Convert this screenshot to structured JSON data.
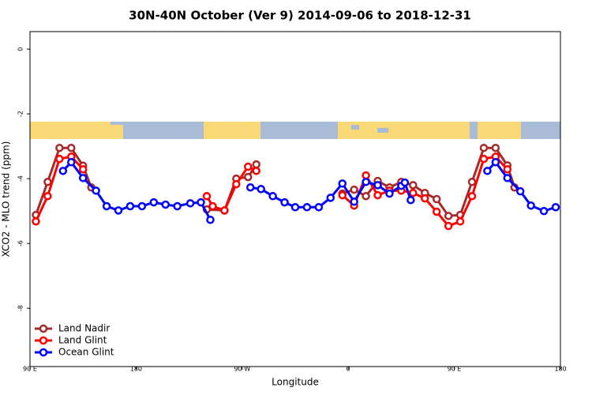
{
  "chart_data": {
    "type": "line",
    "title": "30N-40N October (Ver 9)   2014-09-06 to 2018-12-31",
    "x_label": "Longitude",
    "y_label": "XCO2 - MLO trend (ppm)",
    "xlim": [
      90,
      540
    ],
    "ylim": [
      -9.8,
      0.54
    ],
    "xticks": [
      {
        "value": 90,
        "label": "90 E"
      },
      180,
      {
        "value": 270,
        "label": "90 W"
      },
      {
        "value": 360,
        "label": "0"
      },
      {
        "value": 450,
        "label": "90 E"
      },
      180
    ],
    "yticks": [
      0,
      -2,
      -4,
      -6,
      -8
    ],
    "legend": "bottomleft",
    "series": [
      {
        "name": "Land Nadir",
        "color": "#a52a2a",
        "x": [
          95,
          105,
          115,
          125,
          135,
          142,
          null,
          240,
          255,
          265,
          275,
          282,
          null,
          355,
          365,
          375,
          385,
          395,
          405,
          415,
          425,
          435,
          445,
          455,
          465,
          475,
          485,
          495,
          501
        ],
        "values": [
          -5.12,
          -4.1,
          -3.05,
          -3.05,
          -3.6,
          -4.27,
          null,
          -4.95,
          -4.98,
          -4.0,
          -3.95,
          -3.56,
          null,
          -4.46,
          -4.34,
          -4.54,
          -4.07,
          -4.27,
          -4.1,
          -4.2,
          -4.44,
          -4.63,
          -5.15,
          -5.12,
          -4.1,
          -3.05,
          -3.05,
          -3.59,
          -4.27
        ]
      },
      {
        "name": "Land Glint",
        "color": "#ff0000",
        "x": [
          95,
          105,
          115,
          125,
          135,
          null,
          240,
          245,
          255,
          265,
          275,
          282,
          null,
          355,
          365,
          375,
          385,
          395,
          405,
          415,
          425,
          435,
          445,
          455,
          465,
          475,
          485,
          495
        ],
        "values": [
          -5.32,
          -4.54,
          -3.39,
          -3.32,
          -3.71,
          null,
          -4.54,
          -4.85,
          -4.98,
          -4.17,
          -3.63,
          -3.76,
          null,
          -4.51,
          -4.83,
          -3.9,
          -4.51,
          -4.37,
          -4.37,
          -4.44,
          -4.61,
          -5.02,
          -5.46,
          -5.32,
          -4.54,
          -3.39,
          -3.32,
          -3.71
        ]
      },
      {
        "name": "Ocean Glint",
        "color": "#0000ff",
        "x": [
          118,
          125,
          135,
          146,
          155,
          165,
          175,
          185,
          195,
          205,
          215,
          226,
          235,
          243,
          null,
          277,
          286,
          296,
          306,
          315,
          325,
          335,
          345,
          355,
          365,
          375,
          385,
          395,
          405,
          408,
          413,
          null,
          478,
          485,
          495,
          506,
          515,
          526,
          536
        ],
        "values": [
          -3.76,
          -3.49,
          -3.98,
          -4.37,
          -4.85,
          -4.98,
          -4.85,
          -4.85,
          -4.73,
          -4.8,
          -4.85,
          -4.76,
          -4.73,
          -5.27,
          null,
          -4.27,
          -4.32,
          -4.54,
          -4.73,
          -4.88,
          -4.88,
          -4.88,
          -4.59,
          -4.15,
          -4.71,
          -4.1,
          -4.2,
          -4.46,
          -4.22,
          -4.12,
          -4.66,
          null,
          -3.76,
          -3.49,
          -3.98,
          -4.39,
          -4.83,
          -5.0,
          -4.88
        ]
      }
    ]
  }
}
